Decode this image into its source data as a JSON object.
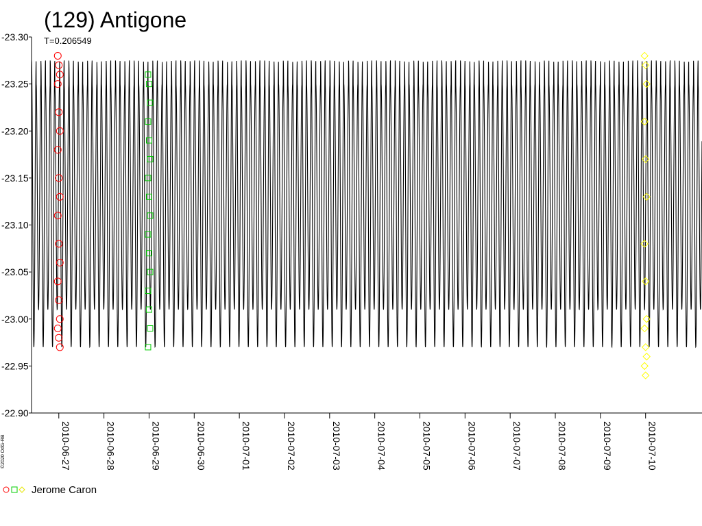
{
  "chart_data": {
    "type": "scatter",
    "title": "(129) Antigone",
    "subtitle": "T=0.206549",
    "xlabel": "",
    "ylabel": "",
    "x_type": "date",
    "xlim": [
      "2010-06-26 09:30",
      "2010-07-11 06:00"
    ],
    "ylim": [
      -23.3,
      -22.9
    ],
    "y_reversed": true,
    "y_ticks": [
      "-23.30",
      "-23.25",
      "-23.20",
      "-23.15",
      "-23.10",
      "-23.05",
      "-23.00",
      "-22.95",
      "-22.90"
    ],
    "x_ticks": [
      "2010-06-27",
      "2010-06-28",
      "2010-06-29",
      "2010-06-30",
      "2010-07-01",
      "2010-07-02",
      "2010-07-03",
      "2010-07-04",
      "2010-07-05",
      "2010-07-06",
      "2010-07-07",
      "2010-07-08",
      "2010-07-09",
      "2010-07-10"
    ],
    "model_curve": {
      "period_days": 0.206549,
      "max_magnitude": -23.275,
      "min_magnitude": -22.97,
      "secondary_max": -23.25,
      "secondary_min": -23.01,
      "color": "#000000"
    },
    "series": [
      {
        "name": "Jerome Caron",
        "marker": "circle",
        "color": "#ff0000",
        "x": [
          "2010-06-27 00:00",
          "2010-06-27 00:00",
          "2010-06-27 00:00",
          "2010-06-27 00:00",
          "2010-06-27 00:00",
          "2010-06-27 00:00",
          "2010-06-27 00:00",
          "2010-06-27 00:00",
          "2010-06-27 00:00",
          "2010-06-27 00:00",
          "2010-06-27 00:00",
          "2010-06-27 00:00",
          "2010-06-27 00:00",
          "2010-06-27 00:00",
          "2010-06-27 00:00",
          "2010-06-27 00:00",
          "2010-06-27 00:00",
          "2010-06-27 00:00"
        ],
        "y": [
          -23.28,
          -23.27,
          -23.26,
          -23.25,
          -23.22,
          -23.2,
          -23.18,
          -23.15,
          -23.13,
          -23.11,
          -23.08,
          -23.06,
          -23.04,
          -23.02,
          -23.0,
          -22.99,
          -22.98,
          -22.97
        ]
      },
      {
        "name": "",
        "marker": "square",
        "color": "#00cc00",
        "x": [
          "2010-06-29 00:00",
          "2010-06-29 00:00",
          "2010-06-29 00:00",
          "2010-06-29 00:00",
          "2010-06-29 00:00",
          "2010-06-29 00:00",
          "2010-06-29 00:00",
          "2010-06-29 00:00",
          "2010-06-29 00:00",
          "2010-06-29 00:00",
          "2010-06-29 00:00",
          "2010-06-29 00:00",
          "2010-06-29 00:00",
          "2010-06-29 00:00",
          "2010-06-29 00:00",
          "2010-06-29 00:00"
        ],
        "y": [
          -23.26,
          -23.25,
          -23.23,
          -23.21,
          -23.19,
          -23.17,
          -23.15,
          -23.13,
          -23.11,
          -23.09,
          -23.07,
          -23.05,
          -23.03,
          -23.01,
          -22.99,
          -22.97
        ]
      },
      {
        "name": "",
        "marker": "diamond",
        "color": "#ffff00",
        "x": [
          "2010-07-10 00:00",
          "2010-07-10 00:00",
          "2010-07-10 00:00",
          "2010-07-10 00:00",
          "2010-07-10 00:00",
          "2010-07-10 00:00",
          "2010-07-10 00:00",
          "2010-07-10 00:00",
          "2010-07-10 00:00",
          "2010-07-10 00:00",
          "2010-07-10 00:00",
          "2010-07-10 00:00",
          "2010-07-10 00:00",
          "2010-07-10 00:00"
        ],
        "y": [
          -23.28,
          -23.27,
          -23.25,
          -23.21,
          -23.17,
          -23.13,
          -23.08,
          -23.04,
          -23.0,
          -22.99,
          -22.97,
          -22.96,
          -22.95,
          -22.94
        ]
      }
    ],
    "grid": false,
    "legend_position": "bottom-left",
    "legend_label": "Jerome Caron"
  },
  "credit": "©2020 OdG-RB"
}
